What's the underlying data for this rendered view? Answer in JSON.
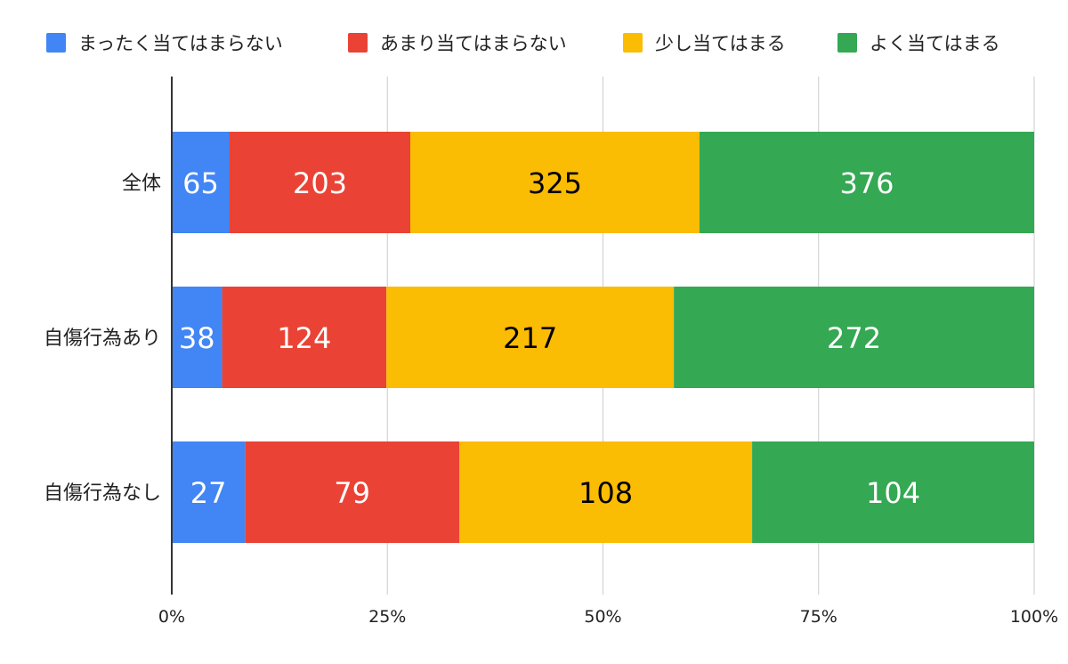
{
  "chart_data": {
    "type": "bar",
    "orientation": "horizontal",
    "stacked": "percent",
    "categories": [
      "全体",
      "自傷行為あり",
      "自傷行為なし"
    ],
    "series": [
      {
        "name": "まったく当てはまらない",
        "color": "#4285F4",
        "label_color": "#ffffff",
        "values": [
          65,
          38,
          27
        ]
      },
      {
        "name": "あまり当てはまらない",
        "color": "#EA4335",
        "label_color": "#ffffff",
        "values": [
          203,
          124,
          79
        ]
      },
      {
        "name": "少し当てはまる",
        "color": "#FBBC04",
        "label_color": "#000000",
        "values": [
          325,
          217,
          108
        ]
      },
      {
        "name": "よく当てはまる",
        "color": "#34A853",
        "label_color": "#ffffff",
        "values": [
          376,
          272,
          104
        ]
      }
    ],
    "x_ticks": [
      "0%",
      "25%",
      "50%",
      "75%",
      "100%"
    ],
    "xlim": [
      0,
      100
    ],
    "grid": true,
    "legend_position": "top"
  }
}
